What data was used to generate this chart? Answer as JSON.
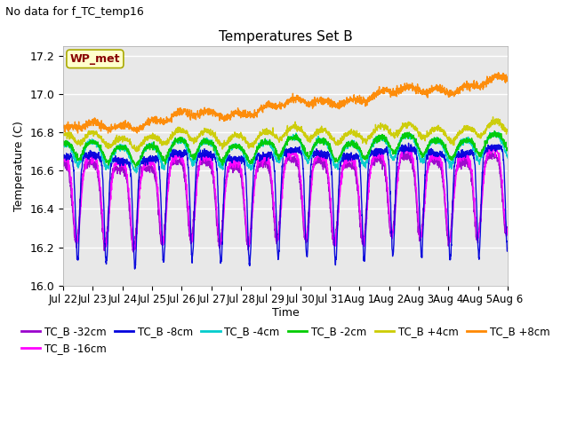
{
  "title": "Temperatures Set B",
  "subtitle": "No data for f_TC_temp16",
  "ylabel": "Temperature (C)",
  "xlabel": "Time",
  "ylim": [
    16.0,
    17.25
  ],
  "yticks": [
    16.0,
    16.2,
    16.4,
    16.6,
    16.8,
    17.0,
    17.2
  ],
  "xtick_labels": [
    "Jul 22",
    "Jul 23",
    "Jul 24",
    "Jul 25",
    "Jul 26",
    "Jul 27",
    "Jul 28",
    "Jul 29",
    "Jul 30",
    "Jul 31",
    "Aug 1",
    "Aug 2",
    "Aug 3",
    "Aug 4",
    "Aug 5",
    "Aug 6"
  ],
  "legend_entries": [
    "TC_B -32cm",
    "TC_B -16cm",
    "TC_B -8cm",
    "TC_B -4cm",
    "TC_B -2cm",
    "TC_B +4cm",
    "TC_B +8cm"
  ],
  "series_colors": [
    "#9900cc",
    "#ff00ff",
    "#0000dd",
    "#00cccc",
    "#00cc00",
    "#cccc00",
    "#ff8800"
  ],
  "wp_met_label": "WP_met",
  "wp_met_color": "#880000",
  "wp_met_bg": "#ffffcc",
  "wp_met_edge": "#aaaa00",
  "background_color": "#e8e8e8",
  "n_days": 15.5,
  "points_per_day": 144,
  "figwidth": 6.4,
  "figheight": 4.8,
  "dpi": 100
}
